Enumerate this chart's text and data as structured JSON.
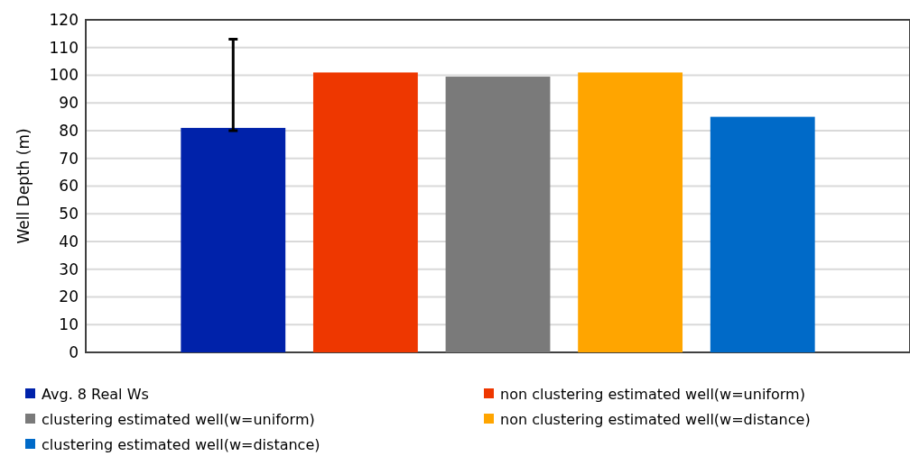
{
  "chart_data": {
    "type": "bar",
    "ylabel": "Well Depth (m)",
    "categories": [
      null
    ],
    "ylim": [
      0,
      120
    ],
    "yticks": [
      0,
      10,
      20,
      30,
      40,
      50,
      60,
      70,
      80,
      90,
      100,
      110,
      120
    ],
    "grid": "y",
    "legend": "bottom",
    "series": [
      {
        "name": "Avg. 8 Real Ws",
        "color": "#0022aa",
        "values": [
          81
        ],
        "errors": [
          [
            80,
            113
          ]
        ]
      },
      {
        "name": "non clustering estimated well(w=uniform)",
        "color": "#ee3700",
        "values": [
          101
        ]
      },
      {
        "name": "clustering estimated well(w=uniform)",
        "color": "#7a7a7a",
        "values": [
          99.5
        ]
      },
      {
        "name": "non clustering estimated well(w=distance)",
        "color": "#ffa500",
        "values": [
          101
        ]
      },
      {
        "name": "clustering estimated well(w=distance)",
        "color": "#006ac8",
        "values": [
          85
        ]
      }
    ]
  }
}
